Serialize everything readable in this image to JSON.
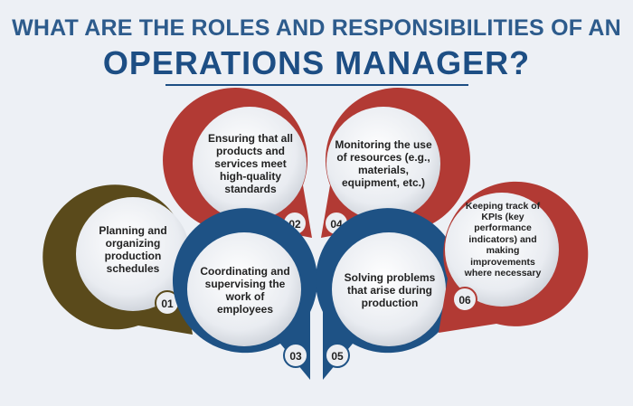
{
  "title": {
    "line1": "WHAT ARE THE ROLES AND RESPONSIBILITIES OF AN",
    "line2": "OPERATIONS MANAGER?"
  },
  "colors": {
    "olive": "#5a4a1b",
    "red": "#b23a34",
    "blue": "#1e5285",
    "title": "#1d4e84",
    "bubble": "#dfe3e9"
  },
  "roles": [
    {
      "number": "01",
      "text": "Planning and organizing production schedules"
    },
    {
      "number": "02",
      "text": "Ensuring that all products and services meet high-quality standards"
    },
    {
      "number": "03",
      "text": "Coordinating and supervising the work of employees"
    },
    {
      "number": "04",
      "text": "Monitoring the use of resources (e.g., materials, equipment, etc.)"
    },
    {
      "number": "05",
      "text": "Solving problems that arise during production"
    },
    {
      "number": "06",
      "text": "Keeping track of KPIs (key performance indicators) and making improvements where necessary"
    }
  ]
}
